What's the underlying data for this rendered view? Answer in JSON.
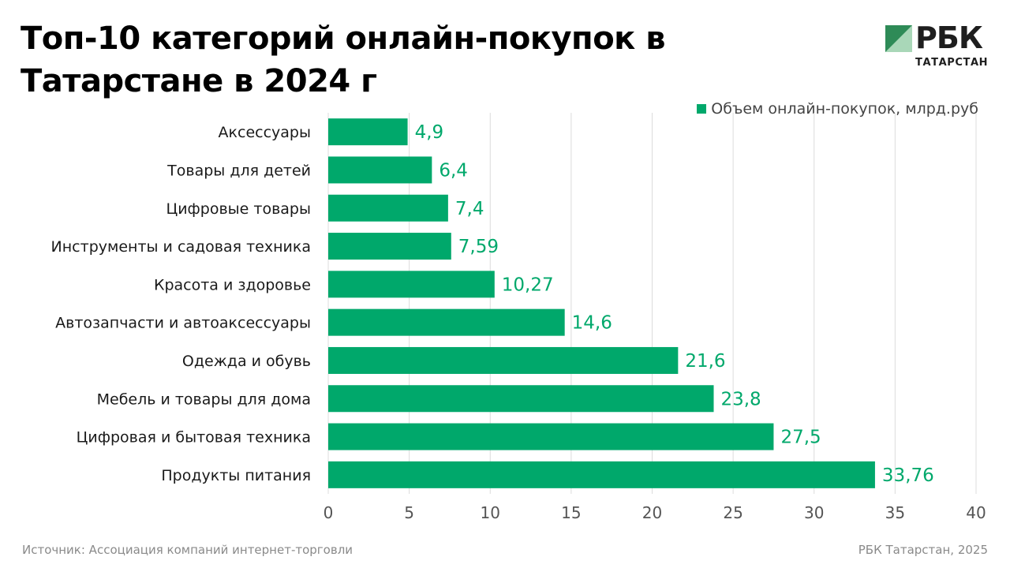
{
  "title_line1": "Топ-10 категорий онлайн-покупок в",
  "title_line2": "Татарстане в 2024 г",
  "logo": {
    "name": "РБК",
    "region": "ТАТАРСТАН"
  },
  "colors": {
    "bar": "#00a86b",
    "label": "#00a86b",
    "grid": "#dcdcdc",
    "tick": "#555555",
    "logo_green": "#2e8b57"
  },
  "source": "Источник: Ассоциация компаний интернет-торговли",
  "credit": "РБК Татарстан, 2025",
  "chart_data": {
    "type": "bar",
    "orientation": "horizontal",
    "categories": [
      "Аксессуары",
      "Товары для детей",
      "Цифровые товары",
      "Инструменты и садовая техника",
      "Красота и здоровье",
      "Автозапчасти и автоаксессуары",
      "Одежда и обувь",
      "Мебель и товары для дома",
      "Цифровая и бытовая техника",
      "Продукты питания"
    ],
    "series": [
      {
        "name": "Объем онлайн-покупок, млрд.руб",
        "values": [
          4.9,
          6.4,
          7.4,
          7.59,
          10.27,
          14.6,
          21.6,
          23.8,
          27.5,
          33.76
        ],
        "labels": [
          "4,9",
          "6,4",
          "7,4",
          "7,59",
          "10,27",
          "14,6",
          "21,6",
          "23,8",
          "27,5",
          "33,76"
        ]
      }
    ],
    "x_ticks": [
      "0",
      "5",
      "10",
      "15",
      "20",
      "25",
      "30",
      "35",
      "40"
    ],
    "xlim": [
      0,
      40
    ],
    "grid": true,
    "legend_position": "top-right"
  }
}
